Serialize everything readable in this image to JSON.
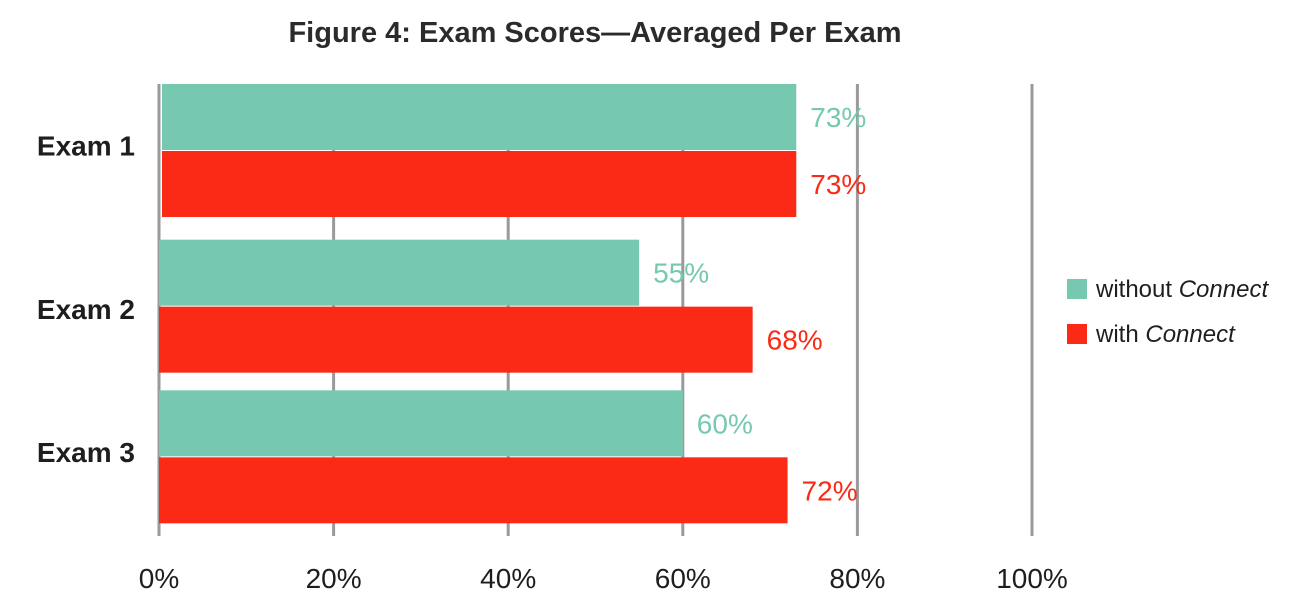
{
  "chart_data": {
    "type": "bar",
    "orientation": "horizontal",
    "title": "Figure 4: Exam Scores—Averaged Per Exam",
    "xlabel": "",
    "ylabel": "",
    "categories": [
      "Exam 1",
      "Exam 2",
      "Exam 3"
    ],
    "series": [
      {
        "name": "without Connect",
        "legend_prefix": "without ",
        "legend_italic": "Connect",
        "color": "#76c9b0",
        "values": [
          73,
          55,
          60
        ],
        "value_labels": [
          "73%",
          "55%",
          "60%"
        ]
      },
      {
        "name": "with Connect",
        "legend_prefix": "with ",
        "legend_italic": "Connect",
        "color": "#fa2a16",
        "values": [
          73,
          68,
          72
        ],
        "value_labels": [
          "73%",
          "68%",
          "72%"
        ]
      }
    ],
    "xlim": [
      0,
      100
    ],
    "xticks": [
      0,
      20,
      40,
      60,
      80,
      100
    ],
    "xtick_labels": [
      "0%",
      "20%",
      "40%",
      "60%",
      "80%",
      "100%"
    ],
    "grid": "vertical",
    "legend_position": "right"
  }
}
